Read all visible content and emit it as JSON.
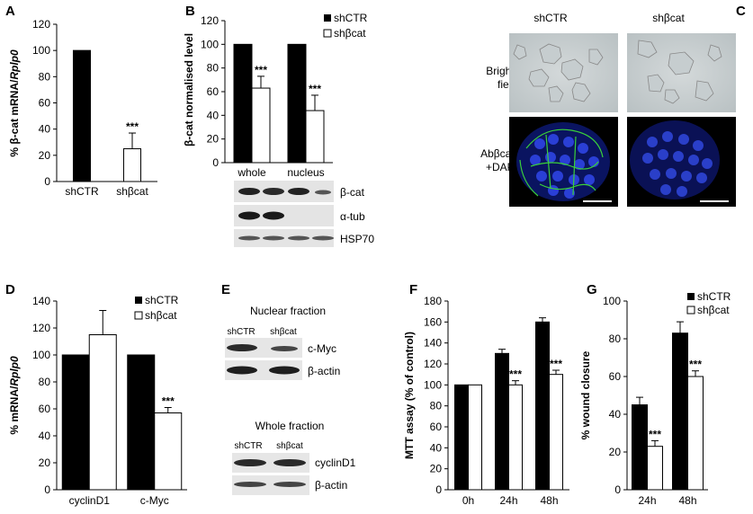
{
  "panel_letters": [
    "A",
    "B",
    "C",
    "D",
    "E",
    "F",
    "G"
  ],
  "legend": {
    "control": "shCTR",
    "knockdown": "shβcat"
  },
  "chart_data": [
    {
      "panel": "A",
      "type": "bar",
      "ylabel_pre": "% β-cat mRNA/",
      "ylabel_italic": "Rplp0",
      "ylim": [
        0,
        120
      ],
      "yticks": [
        0,
        20,
        40,
        60,
        80,
        100,
        120
      ],
      "categories": [
        "shCTR",
        "shβcat"
      ],
      "values": [
        100,
        25
      ],
      "errors": [
        0,
        12
      ],
      "annotations": [
        "",
        "***"
      ]
    },
    {
      "panel": "B",
      "type": "bar",
      "ylabel": "β-cat normalised level",
      "ylim": [
        0,
        120
      ],
      "yticks": [
        0,
        20,
        40,
        60,
        80,
        100,
        120
      ],
      "categories": [
        "whole",
        "nucleus"
      ],
      "series": [
        {
          "name": "shCTR",
          "values": [
            100,
            100
          ],
          "errors": [
            0,
            0
          ],
          "annotations": [
            "",
            ""
          ]
        },
        {
          "name": "shβcat",
          "values": [
            63,
            44
          ],
          "errors": [
            10,
            13
          ],
          "annotations": [
            "***",
            "***"
          ]
        }
      ]
    },
    {
      "panel": "D",
      "type": "bar",
      "ylabel_pre": "% mRNA/",
      "ylabel_italic": "Rplp0",
      "ylim": [
        0,
        140
      ],
      "yticks": [
        0,
        20,
        40,
        60,
        80,
        100,
        120,
        140
      ],
      "categories": [
        "cyclinD1",
        "c-Myc"
      ],
      "series": [
        {
          "name": "shCTR",
          "values": [
            100,
            100
          ],
          "errors": [
            0,
            0
          ],
          "annotations": [
            "",
            ""
          ]
        },
        {
          "name": "shβcat",
          "values": [
            115,
            57
          ],
          "errors": [
            18,
            4
          ],
          "annotations": [
            "",
            "***"
          ]
        }
      ]
    },
    {
      "panel": "F",
      "type": "bar",
      "ylabel": "MTT assay (% of control)",
      "ylim": [
        0,
        180
      ],
      "yticks": [
        0,
        20,
        40,
        60,
        80,
        100,
        120,
        140,
        160,
        180
      ],
      "categories": [
        "0h",
        "24h",
        "48h"
      ],
      "series": [
        {
          "name": "shCTR",
          "values": [
            100,
            130,
            160
          ],
          "errors": [
            0,
            4,
            4
          ],
          "annotations": [
            "",
            "",
            ""
          ]
        },
        {
          "name": "shβcat",
          "values": [
            100,
            100,
            110
          ],
          "errors": [
            0,
            4,
            4
          ],
          "annotations": [
            "",
            "***",
            "***"
          ]
        }
      ]
    },
    {
      "panel": "G",
      "type": "bar",
      "ylabel": "% wound closure",
      "ylim": [
        0,
        100
      ],
      "yticks": [
        0,
        20,
        40,
        60,
        80,
        100
      ],
      "categories": [
        "24h",
        "48h"
      ],
      "series": [
        {
          "name": "shCTR",
          "values": [
            45,
            83
          ],
          "errors": [
            4,
            6
          ],
          "annotations": [
            "",
            ""
          ]
        },
        {
          "name": "shβcat",
          "values": [
            23,
            60
          ],
          "errors": [
            3,
            3
          ],
          "annotations": [
            "***",
            "***"
          ]
        }
      ]
    }
  ],
  "blot_B": {
    "labels": [
      "β-cat",
      "α-tub",
      "HSP70"
    ]
  },
  "micro_C": {
    "col_labels": [
      "shCTR",
      "shβcat"
    ],
    "row1": "Bright field",
    "row1_lines": [
      "Bright",
      "field"
    ],
    "row2": "Abβcat +DAPI",
    "row2_lines": [
      "Abβcat",
      "+DAPI"
    ]
  },
  "blot_E": {
    "nuclear_title": "Nuclear fraction",
    "whole_title": "Whole fraction",
    "lane_labels": [
      "shCTR",
      "shβcat"
    ],
    "nuclear_bands": [
      "c-Myc",
      "β-actin"
    ],
    "whole_bands": [
      "cyclinD1",
      "β-actin"
    ]
  }
}
